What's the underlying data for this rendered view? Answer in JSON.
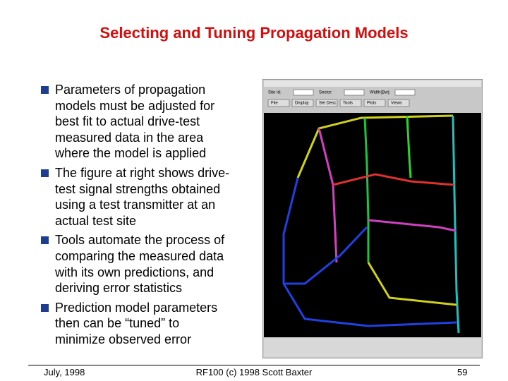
{
  "header": {
    "title": "Selecting and Tuning Propagation Models"
  },
  "bullets": [
    {
      "lines": [
        "Parameters of propagation",
        "models must be adjusted for",
        "best fit to actual drive-test",
        "measured data in the area",
        "where the model is  applied"
      ]
    },
    {
      "lines": [
        "The figure at right shows drive-",
        "test signal strengths obtained",
        "using a test transmitter at an",
        "actual test site"
      ]
    },
    {
      "lines": [
        "Tools automate the process of",
        "comparing the measured data",
        "with its own predictions, and",
        "deriving error statistics"
      ]
    },
    {
      "lines": [
        "Prediction model parameters",
        "then can be “tuned” to",
        "minimize observed error"
      ]
    }
  ],
  "screenshot": {
    "menu": [
      "File",
      "Display",
      "Set Desc",
      "Tools",
      "Plots",
      "Views"
    ],
    "fields": [
      "Site Id:",
      "Sector:",
      "Width(Bw):"
    ]
  },
  "footer": {
    "date": "July, 1998",
    "course": "RF100 (c) 1998 Scott Baxter",
    "page": "59"
  }
}
